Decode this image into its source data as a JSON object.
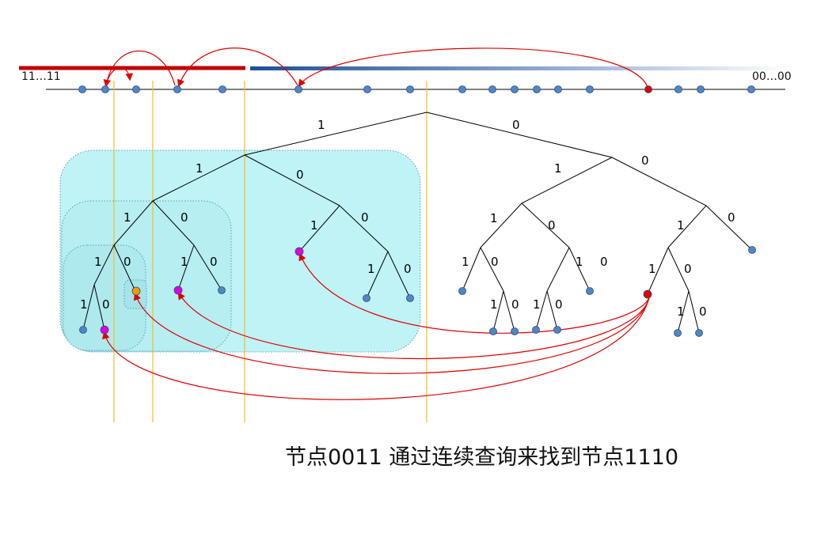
{
  "line_labels": {
    "left": "11…11",
    "right": "00…00"
  },
  "branch_labels": {
    "root": [
      "1",
      "0"
    ],
    "l1_left": [
      "1",
      "0"
    ],
    "l1_right": [
      "1",
      "0"
    ],
    "ll": [
      "1",
      "0"
    ],
    "lr": [
      "1",
      "0"
    ],
    "rl": [
      "1",
      "0"
    ],
    "rr": [
      "1",
      "0"
    ],
    "lll": [
      "1",
      "0"
    ],
    "llr": [
      "1",
      "0"
    ],
    "lrl": [
      "1",
      "0"
    ],
    "rll": [
      "1",
      "0"
    ],
    "rlr": [
      "1",
      "0"
    ],
    "rlrl": [
      "1",
      "0"
    ],
    "rrl": [
      "1",
      "0"
    ],
    "llll": [
      "1",
      "0"
    ],
    "rrll": [
      "1",
      "0"
    ],
    "rlll": [
      "1",
      "0"
    ]
  },
  "caption": "节点0011 通过连续查询来找到节点1110",
  "colors": {
    "node": "#4f86c6",
    "query_node": "#e00000",
    "found_magenta": "#e000e0",
    "found_orange": "#f59a00",
    "arrow": "#e00000",
    "bar_left": "#c00000",
    "bar_right_start": "#1f4e9a",
    "subtree_fill": "#b8f0f4",
    "guide": "#f0c020"
  }
}
